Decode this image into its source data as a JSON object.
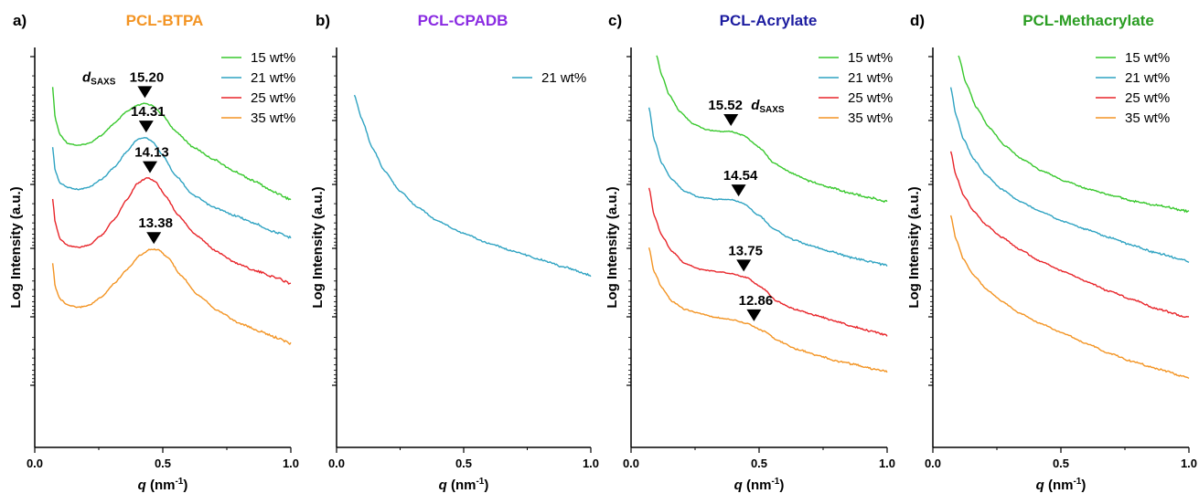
{
  "colors": {
    "15": "#39c82e",
    "21": "#2fa3c2",
    "25": "#e8252a",
    "35": "#f39423",
    "title_a": "#f39423",
    "title_b": "#8a2be2",
    "title_c": "#1c1ca0",
    "title_d": "#2a9d22"
  },
  "chart_data": [
    {
      "type": "line",
      "panel": "a)",
      "title": "PCL-BTPA",
      "xlabel_main": "q",
      "xlabel_unit": "(nm",
      "xlabel_exp": "-1",
      "xlabel_close": ")",
      "ylabel": "Log Intensity (a.u.)",
      "xlim": [
        0.0,
        1.0
      ],
      "xticks": [
        "0.0",
        "0.5",
        "1.0"
      ],
      "y_scale": "log (arbitrary offsets)",
      "legend": [
        "15 wt%",
        "21 wt%",
        "25 wt%",
        "35 wt%"
      ],
      "annotation_label": "d",
      "annotation_sub": "SAXS",
      "series": [
        {
          "name": "15 wt%",
          "color_key": "15",
          "peak": {
            "q": 0.43,
            "label": "15.20"
          },
          "points": [
            [
              0.07,
              0.1
            ],
            [
              0.08,
              0.18
            ],
            [
              0.1,
              0.22
            ],
            [
              0.13,
              0.24
            ],
            [
              0.17,
              0.245
            ],
            [
              0.21,
              0.24
            ],
            [
              0.26,
              0.22
            ],
            [
              0.31,
              0.19
            ],
            [
              0.36,
              0.16
            ],
            [
              0.4,
              0.145
            ],
            [
              0.43,
              0.14
            ],
            [
              0.46,
              0.145
            ],
            [
              0.5,
              0.17
            ],
            [
              0.55,
              0.21
            ],
            [
              0.62,
              0.25
            ],
            [
              0.7,
              0.28
            ],
            [
              0.78,
              0.31
            ],
            [
              0.86,
              0.335
            ],
            [
              0.93,
              0.36
            ],
            [
              1.0,
              0.38
            ]
          ]
        },
        {
          "name": "21 wt%",
          "color_key": "21",
          "peak": {
            "q": 0.435,
            "label": "14.31"
          },
          "points": [
            [
              0.07,
              0.25
            ],
            [
              0.08,
              0.31
            ],
            [
              0.1,
              0.34
            ],
            [
              0.13,
              0.35
            ],
            [
              0.17,
              0.355
            ],
            [
              0.21,
              0.35
            ],
            [
              0.26,
              0.33
            ],
            [
              0.31,
              0.3
            ],
            [
              0.36,
              0.26
            ],
            [
              0.4,
              0.23
            ],
            [
              0.43,
              0.225
            ],
            [
              0.46,
              0.235
            ],
            [
              0.5,
              0.27
            ],
            [
              0.55,
              0.32
            ],
            [
              0.62,
              0.37
            ],
            [
              0.7,
              0.4
            ],
            [
              0.78,
              0.42
            ],
            [
              0.86,
              0.44
            ],
            [
              0.93,
              0.46
            ],
            [
              1.0,
              0.475
            ]
          ]
        },
        {
          "name": "25 wt%",
          "color_key": "25",
          "peak": {
            "q": 0.45,
            "label": "14.13"
          },
          "points": [
            [
              0.07,
              0.38
            ],
            [
              0.08,
              0.44
            ],
            [
              0.1,
              0.48
            ],
            [
              0.13,
              0.495
            ],
            [
              0.17,
              0.5
            ],
            [
              0.21,
              0.495
            ],
            [
              0.26,
              0.47
            ],
            [
              0.31,
              0.43
            ],
            [
              0.36,
              0.38
            ],
            [
              0.4,
              0.34
            ],
            [
              0.44,
              0.325
            ],
            [
              0.47,
              0.335
            ],
            [
              0.51,
              0.37
            ],
            [
              0.56,
              0.42
            ],
            [
              0.63,
              0.47
            ],
            [
              0.71,
              0.51
            ],
            [
              0.79,
              0.54
            ],
            [
              0.87,
              0.56
            ],
            [
              0.94,
              0.575
            ],
            [
              1.0,
              0.59
            ]
          ]
        },
        {
          "name": "35 wt%",
          "color_key": "35",
          "peak": {
            "q": 0.465,
            "label": "13.38"
          },
          "points": [
            [
              0.07,
              0.54
            ],
            [
              0.08,
              0.6
            ],
            [
              0.1,
              0.63
            ],
            [
              0.13,
              0.645
            ],
            [
              0.17,
              0.65
            ],
            [
              0.21,
              0.645
            ],
            [
              0.26,
              0.625
            ],
            [
              0.31,
              0.59
            ],
            [
              0.36,
              0.555
            ],
            [
              0.41,
              0.52
            ],
            [
              0.45,
              0.505
            ],
            [
              0.48,
              0.505
            ],
            [
              0.52,
              0.525
            ],
            [
              0.57,
              0.57
            ],
            [
              0.64,
              0.62
            ],
            [
              0.72,
              0.66
            ],
            [
              0.8,
              0.69
            ],
            [
              0.88,
              0.71
            ],
            [
              0.94,
              0.725
            ],
            [
              1.0,
              0.74
            ]
          ]
        }
      ]
    },
    {
      "type": "line",
      "panel": "b)",
      "title": "PCL-CPADB",
      "xlabel_main": "q",
      "xlabel_unit": "(nm",
      "xlabel_exp": "-1",
      "xlabel_close": ")",
      "ylabel": "Log Intensity (a.u.)",
      "xlim": [
        0.0,
        1.0
      ],
      "xticks": [
        "0.0",
        "0.5",
        "1.0"
      ],
      "legend": [
        "21 wt%"
      ],
      "series": [
        {
          "name": "21 wt%",
          "color_key": "21",
          "points": [
            [
              0.07,
              0.12
            ],
            [
              0.1,
              0.18
            ],
            [
              0.14,
              0.25
            ],
            [
              0.19,
              0.31
            ],
            [
              0.25,
              0.36
            ],
            [
              0.32,
              0.4
            ],
            [
              0.4,
              0.435
            ],
            [
              0.5,
              0.465
            ],
            [
              0.6,
              0.49
            ],
            [
              0.7,
              0.51
            ],
            [
              0.8,
              0.53
            ],
            [
              0.9,
              0.55
            ],
            [
              1.0,
              0.57
            ]
          ]
        }
      ]
    },
    {
      "type": "line",
      "panel": "c)",
      "title": "PCL-Acrylate",
      "xlabel_main": "q",
      "xlabel_unit": "(nm",
      "xlabel_exp": "-1",
      "xlabel_close": ")",
      "ylabel": "Log Intensity (a.u.)",
      "xlim": [
        0.0,
        1.0
      ],
      "xticks": [
        "0.0",
        "0.5",
        "1.0"
      ],
      "legend": [
        "15 wt%",
        "21 wt%",
        "25 wt%",
        "35 wt%"
      ],
      "annotation_label": "d",
      "annotation_sub": "SAXS",
      "series": [
        {
          "name": "15 wt%",
          "color_key": "15",
          "peak": {
            "q": 0.39,
            "label": "15.52"
          },
          "points": [
            [
              0.1,
              0.02
            ],
            [
              0.12,
              0.07
            ],
            [
              0.15,
              0.12
            ],
            [
              0.19,
              0.16
            ],
            [
              0.24,
              0.19
            ],
            [
              0.29,
              0.205
            ],
            [
              0.34,
              0.21
            ],
            [
              0.39,
              0.21
            ],
            [
              0.44,
              0.22
            ],
            [
              0.5,
              0.25
            ],
            [
              0.56,
              0.29
            ],
            [
              0.63,
              0.315
            ],
            [
              0.7,
              0.335
            ],
            [
              0.78,
              0.35
            ],
            [
              0.86,
              0.365
            ],
            [
              0.93,
              0.375
            ],
            [
              1.0,
              0.385
            ]
          ]
        },
        {
          "name": "21 wt%",
          "color_key": "21",
          "peak": {
            "q": 0.42,
            "label": "14.54"
          },
          "points": [
            [
              0.07,
              0.15
            ],
            [
              0.09,
              0.23
            ],
            [
              0.12,
              0.29
            ],
            [
              0.16,
              0.33
            ],
            [
              0.21,
              0.36
            ],
            [
              0.27,
              0.375
            ],
            [
              0.33,
              0.38
            ],
            [
              0.39,
              0.38
            ],
            [
              0.44,
              0.39
            ],
            [
              0.5,
              0.42
            ],
            [
              0.56,
              0.455
            ],
            [
              0.63,
              0.48
            ],
            [
              0.7,
              0.495
            ],
            [
              0.78,
              0.51
            ],
            [
              0.86,
              0.525
            ],
            [
              0.93,
              0.535
            ],
            [
              1.0,
              0.545
            ]
          ]
        },
        {
          "name": "25 wt%",
          "color_key": "25",
          "peak": {
            "q": 0.44,
            "label": "13.75"
          },
          "points": [
            [
              0.07,
              0.35
            ],
            [
              0.09,
              0.42
            ],
            [
              0.12,
              0.47
            ],
            [
              0.16,
              0.51
            ],
            [
              0.21,
              0.54
            ],
            [
              0.27,
              0.555
            ],
            [
              0.33,
              0.56
            ],
            [
              0.39,
              0.565
            ],
            [
              0.45,
              0.575
            ],
            [
              0.51,
              0.6
            ],
            [
              0.57,
              0.635
            ],
            [
              0.64,
              0.655
            ],
            [
              0.72,
              0.67
            ],
            [
              0.8,
              0.685
            ],
            [
              0.88,
              0.7
            ],
            [
              0.94,
              0.71
            ],
            [
              1.0,
              0.72
            ]
          ]
        },
        {
          "name": "35 wt%",
          "color_key": "35",
          "peak": {
            "q": 0.48,
            "label": "12.86"
          },
          "points": [
            [
              0.07,
              0.5
            ],
            [
              0.09,
              0.56
            ],
            [
              0.12,
              0.6
            ],
            [
              0.16,
              0.635
            ],
            [
              0.21,
              0.655
            ],
            [
              0.27,
              0.665
            ],
            [
              0.33,
              0.675
            ],
            [
              0.39,
              0.68
            ],
            [
              0.45,
              0.69
            ],
            [
              0.52,
              0.71
            ],
            [
              0.58,
              0.735
            ],
            [
              0.65,
              0.755
            ],
            [
              0.73,
              0.77
            ],
            [
              0.81,
              0.785
            ],
            [
              0.89,
              0.795
            ],
            [
              0.95,
              0.805
            ],
            [
              1.0,
              0.81
            ]
          ]
        }
      ]
    },
    {
      "type": "line",
      "panel": "d)",
      "title": "PCL-Methacrylate",
      "xlabel_main": "q",
      "xlabel_unit": "(nm",
      "xlabel_exp": "-1",
      "xlabel_close": ")",
      "ylabel": "Log Intensity (a.u.)",
      "xlim": [
        0.0,
        1.0
      ],
      "xticks": [
        "0.0",
        "0.5",
        "1.0"
      ],
      "legend": [
        "15 wt%",
        "21 wt%",
        "25 wt%",
        "35 wt%"
      ],
      "series": [
        {
          "name": "15 wt%",
          "color_key": "15",
          "points": [
            [
              0.1,
              0.02
            ],
            [
              0.13,
              0.09
            ],
            [
              0.17,
              0.15
            ],
            [
              0.22,
              0.2
            ],
            [
              0.28,
              0.245
            ],
            [
              0.35,
              0.28
            ],
            [
              0.43,
              0.31
            ],
            [
              0.52,
              0.335
            ],
            [
              0.61,
              0.355
            ],
            [
              0.7,
              0.37
            ],
            [
              0.79,
              0.385
            ],
            [
              0.88,
              0.395
            ],
            [
              1.0,
              0.41
            ]
          ]
        },
        {
          "name": "21 wt%",
          "color_key": "21",
          "points": [
            [
              0.07,
              0.1
            ],
            [
              0.09,
              0.17
            ],
            [
              0.12,
              0.23
            ],
            [
              0.16,
              0.28
            ],
            [
              0.21,
              0.32
            ],
            [
              0.27,
              0.355
            ],
            [
              0.34,
              0.385
            ],
            [
              0.42,
              0.41
            ],
            [
              0.51,
              0.435
            ],
            [
              0.6,
              0.455
            ],
            [
              0.69,
              0.475
            ],
            [
              0.78,
              0.495
            ],
            [
              0.88,
              0.515
            ],
            [
              1.0,
              0.535
            ]
          ]
        },
        {
          "name": "25 wt%",
          "color_key": "25",
          "points": [
            [
              0.07,
              0.26
            ],
            [
              0.09,
              0.32
            ],
            [
              0.12,
              0.37
            ],
            [
              0.16,
              0.41
            ],
            [
              0.21,
              0.445
            ],
            [
              0.27,
              0.475
            ],
            [
              0.34,
              0.505
            ],
            [
              0.42,
              0.535
            ],
            [
              0.51,
              0.56
            ],
            [
              0.6,
              0.585
            ],
            [
              0.69,
              0.61
            ],
            [
              0.78,
              0.63
            ],
            [
              0.88,
              0.655
            ],
            [
              1.0,
              0.675
            ]
          ]
        },
        {
          "name": "35 wt%",
          "color_key": "35",
          "points": [
            [
              0.07,
              0.42
            ],
            [
              0.09,
              0.48
            ],
            [
              0.12,
              0.53
            ],
            [
              0.16,
              0.57
            ],
            [
              0.21,
              0.605
            ],
            [
              0.27,
              0.635
            ],
            [
              0.34,
              0.665
            ],
            [
              0.42,
              0.69
            ],
            [
              0.51,
              0.715
            ],
            [
              0.6,
              0.74
            ],
            [
              0.69,
              0.765
            ],
            [
              0.78,
              0.785
            ],
            [
              0.88,
              0.805
            ],
            [
              1.0,
              0.825
            ]
          ]
        }
      ]
    }
  ]
}
